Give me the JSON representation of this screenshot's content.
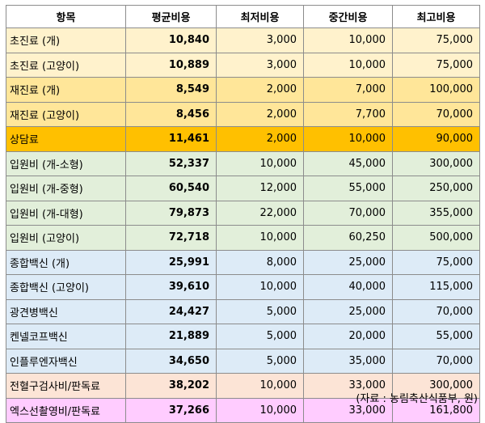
{
  "table": {
    "headers": [
      "항목",
      "평균비용",
      "최저비용",
      "중간비용",
      "최고비용"
    ],
    "rows": [
      {
        "item": "초진료 (개)",
        "avg": "10,840",
        "min": "3,000",
        "mid": "10,000",
        "max": "75,000",
        "color": "#fff2cc"
      },
      {
        "item": "초진료 (고양이)",
        "avg": "10,889",
        "min": "3,000",
        "mid": "10,000",
        "max": "75,000",
        "color": "#fff2cc"
      },
      {
        "item": "재진료 (개)",
        "avg": "8,549",
        "min": "2,000",
        "mid": "7,000",
        "max": "100,000",
        "color": "#ffe699"
      },
      {
        "item": "재진료 (고양이)",
        "avg": "8,456",
        "min": "2,000",
        "mid": "7,700",
        "max": "70,000",
        "color": "#ffe699"
      },
      {
        "item": "상담료",
        "avg": "11,461",
        "min": "2,000",
        "mid": "10,000",
        "max": "90,000",
        "color": "#ffc000"
      },
      {
        "item": "입원비 (개-소형)",
        "avg": "52,337",
        "min": "10,000",
        "mid": "45,000",
        "max": "300,000",
        "color": "#e2efda"
      },
      {
        "item": "입원비 (개-중형)",
        "avg": "60,540",
        "min": "12,000",
        "mid": "55,000",
        "max": "250,000",
        "color": "#e2efda"
      },
      {
        "item": "입원비 (개-대형)",
        "avg": "79,873",
        "min": "22,000",
        "mid": "70,000",
        "max": "355,000",
        "color": "#e2efda"
      },
      {
        "item": "입원비 (고양이)",
        "avg": "72,718",
        "min": "10,000",
        "mid": "60,250",
        "max": "500,000",
        "color": "#e2efda"
      },
      {
        "item": "종합백신 (개)",
        "avg": "25,991",
        "min": "8,000",
        "mid": "25,000",
        "max": "75,000",
        "color": "#ddebf7"
      },
      {
        "item": "종합백신 (고양이)",
        "avg": "39,610",
        "min": "10,000",
        "mid": "40,000",
        "max": "115,000",
        "color": "#ddebf7"
      },
      {
        "item": "광견병백신",
        "avg": "24,427",
        "min": "5,000",
        "mid": "25,000",
        "max": "70,000",
        "color": "#ddebf7"
      },
      {
        "item": "켄넬코프백신",
        "avg": "21,889",
        "min": "5,000",
        "mid": "20,000",
        "max": "55,000",
        "color": "#ddebf7"
      },
      {
        "item": "인플루엔자백신",
        "avg": "34,650",
        "min": "5,000",
        "mid": "35,000",
        "max": "70,000",
        "color": "#ddebf7"
      },
      {
        "item": "전혈구검사비/판독료",
        "avg": "38,202",
        "min": "10,000",
        "mid": "33,000",
        "max": "300,000",
        "color": "#fce4d6"
      },
      {
        "item": "엑스선촬영비/판독료",
        "avg": "37,266",
        "min": "10,000",
        "mid": "33,000",
        "max": "161,800",
        "color": "#ffccff"
      }
    ]
  },
  "source": "(자료 : 농림축산식품부, 원)"
}
